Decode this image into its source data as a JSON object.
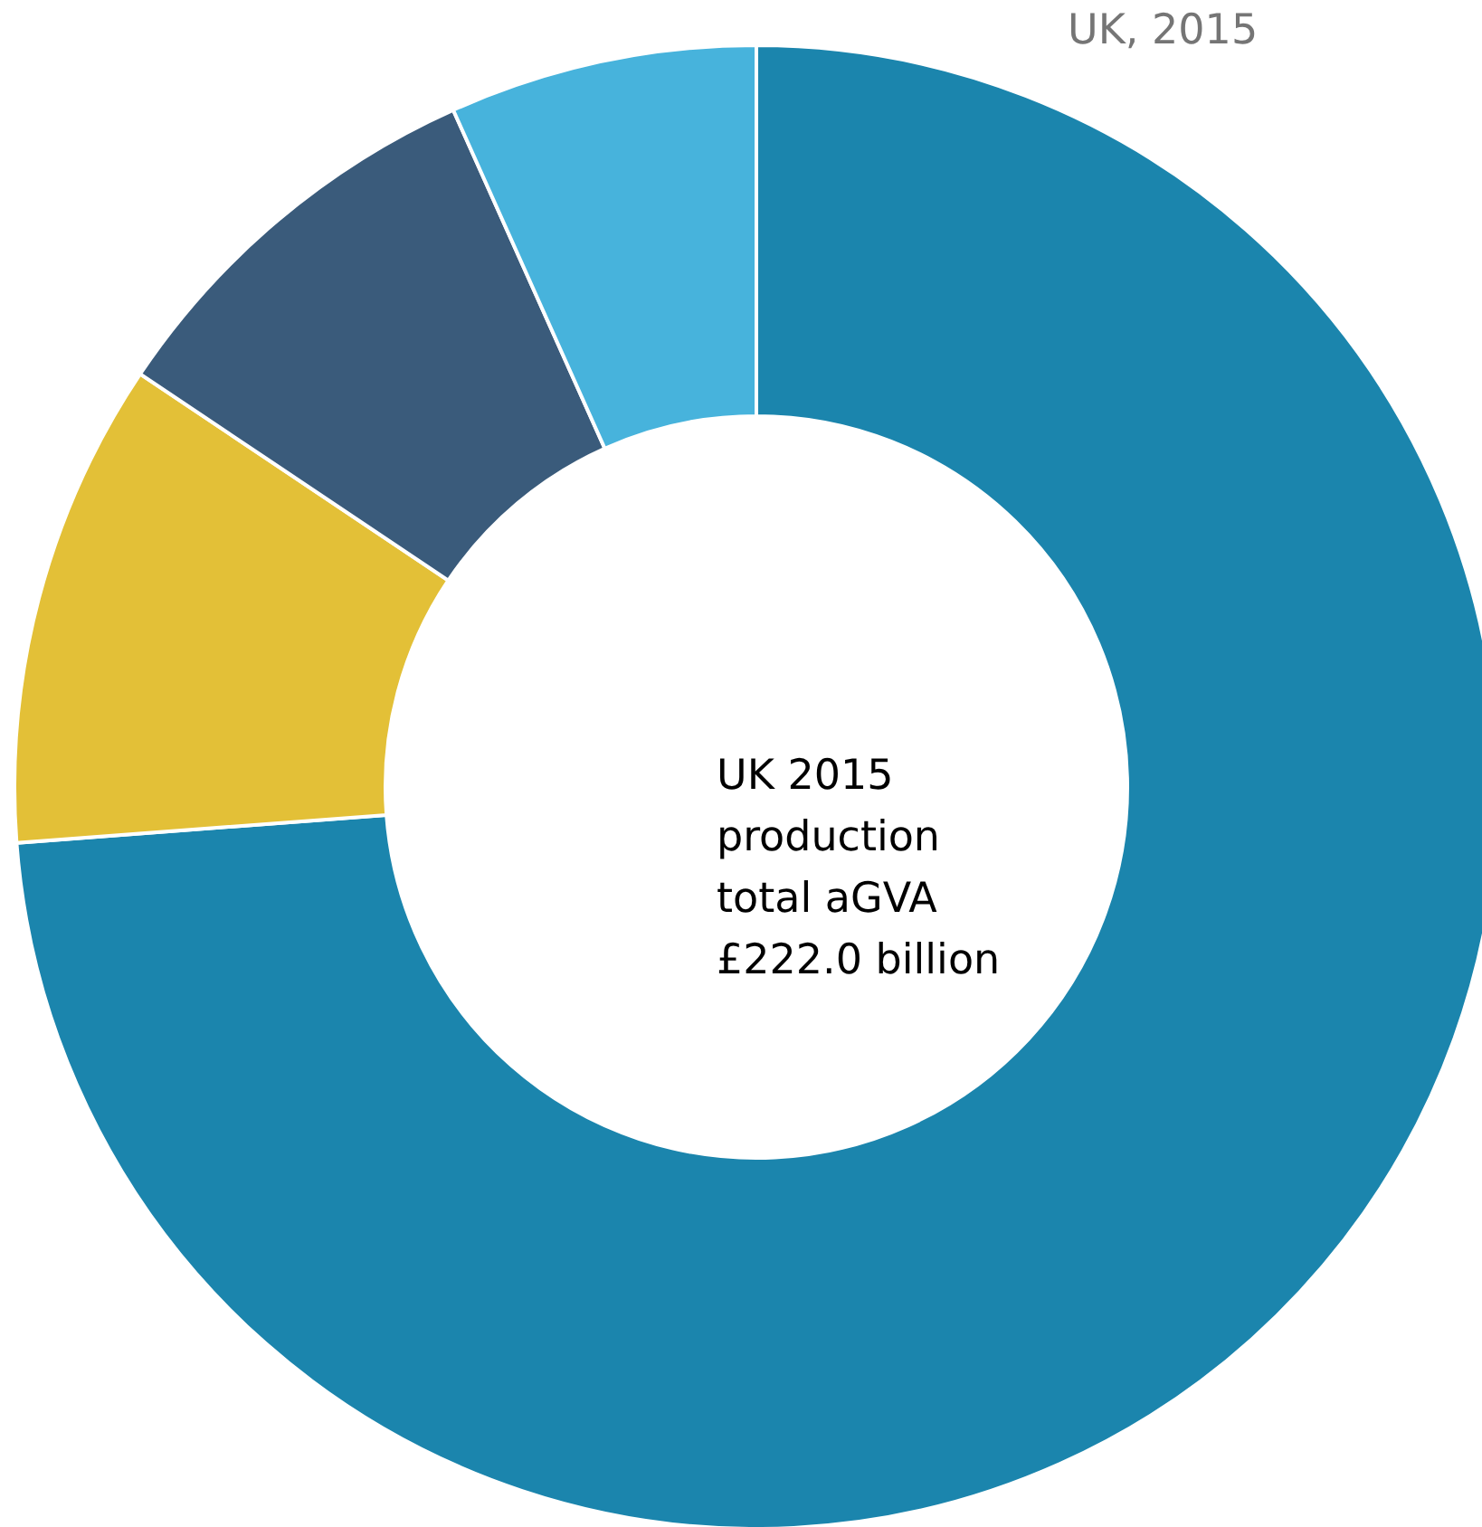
{
  "chart_data": {
    "type": "donut",
    "title": "UK, 2015",
    "annotations": [
      "UK 2015\nproduction\ntotal aGVA\n£222.0 billion"
    ],
    "categories": [
      null,
      null,
      null,
      null
    ],
    "values": [
      73.8,
      10.6,
      8.9,
      6.7
    ],
    "colors": [
      "#1b85ad",
      "#e3c037",
      "#3a5b7b",
      "#47b3dc"
    ]
  }
}
